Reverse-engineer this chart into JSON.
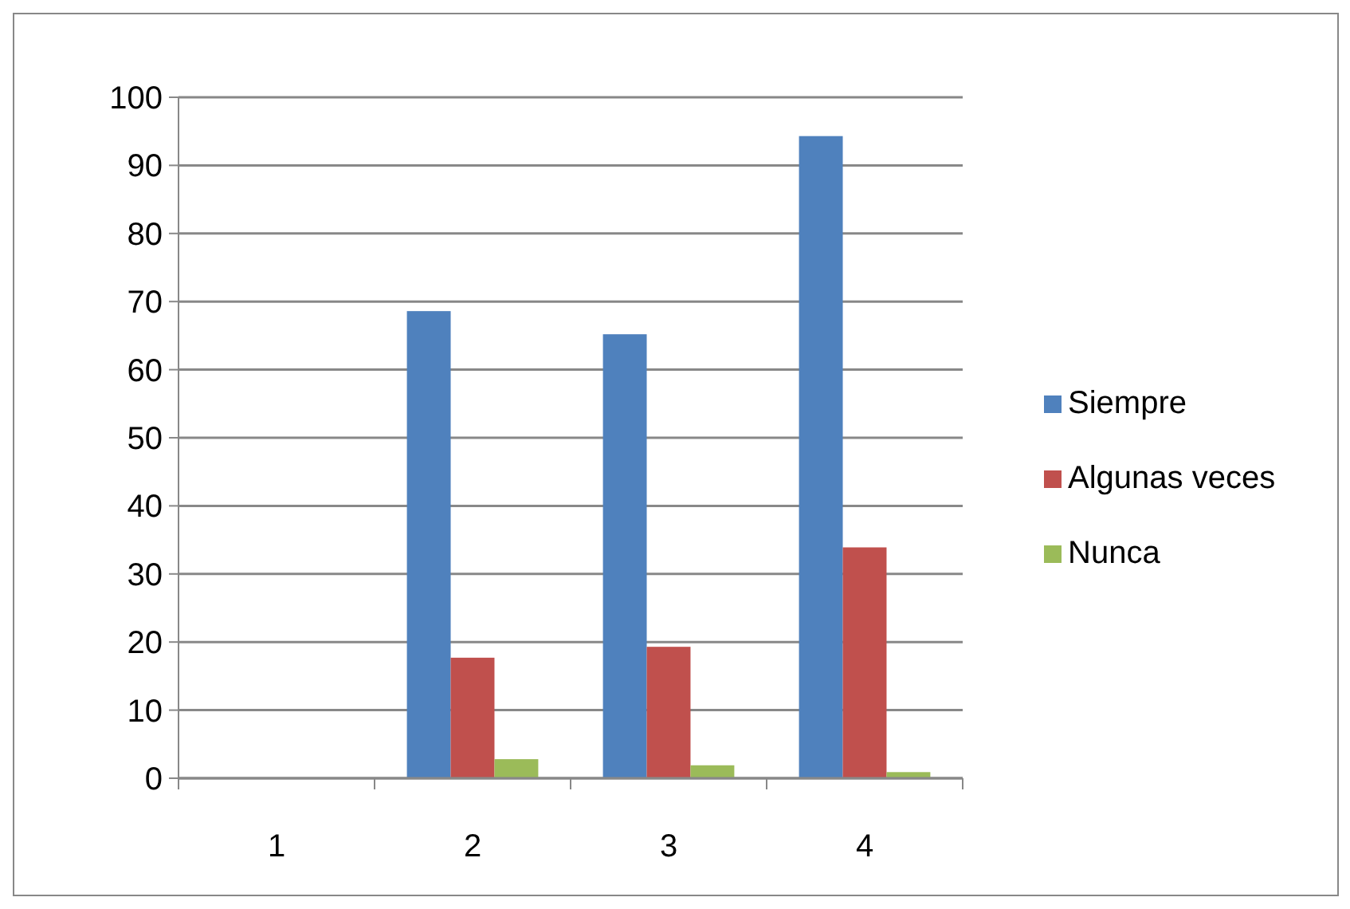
{
  "chart_data": {
    "type": "bar",
    "categories": [
      "1",
      "2",
      "3",
      "4"
    ],
    "series": [
      {
        "name": "Siempre",
        "color": "#4f81bd",
        "values": [
          null,
          68.6,
          65.2,
          94.3
        ]
      },
      {
        "name": "Algunas veces",
        "color": "#c0504d",
        "values": [
          null,
          17.7,
          19.3,
          33.9
        ]
      },
      {
        "name": "Nunca",
        "color": "#9bbb59",
        "values": [
          null,
          2.8,
          1.9,
          0.9
        ]
      }
    ],
    "ylim": [
      0,
      100
    ],
    "yticks": [
      0,
      10,
      20,
      30,
      40,
      50,
      60,
      70,
      80,
      90,
      100
    ],
    "grid": "y",
    "legend": "right"
  }
}
